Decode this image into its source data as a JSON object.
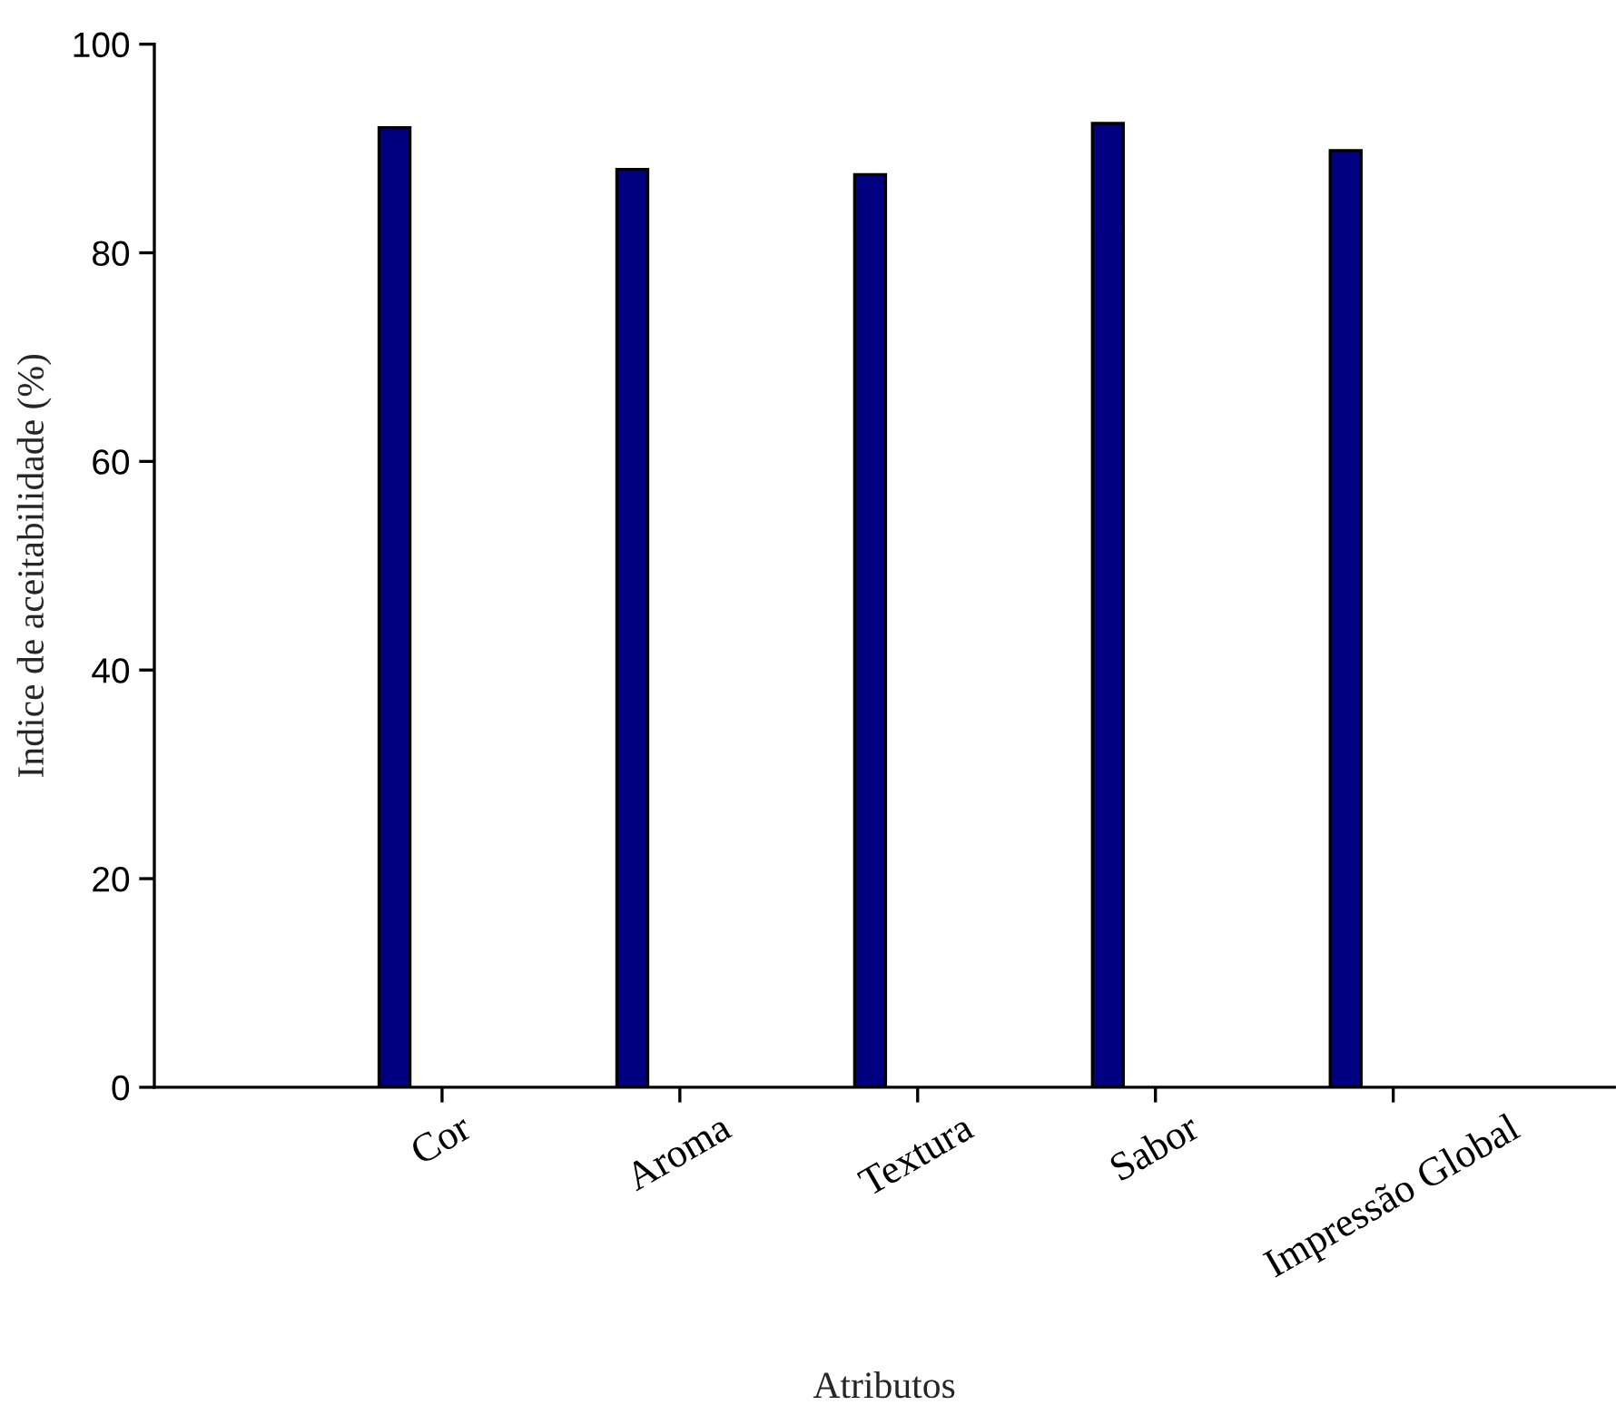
{
  "chart_data": {
    "type": "bar",
    "xlabel": "Atributos",
    "ylabel": "Indice de aceitabilidade (%)",
    "categories": [
      "Cor",
      "Aroma",
      "Textura",
      "Sabor",
      "Impressão Global"
    ],
    "values": [
      92,
      88,
      87.5,
      92.4,
      89.8
    ],
    "color": "#000080",
    "ylim": [
      0,
      100
    ],
    "yticks": [
      0,
      20,
      40,
      60,
      80,
      100
    ],
    "grid": false,
    "legend": false
  }
}
